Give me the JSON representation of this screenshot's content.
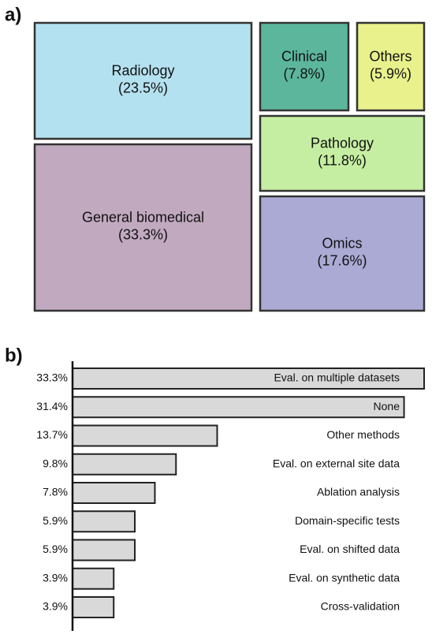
{
  "chart_data": [
    {
      "type": "treemap",
      "panel": "a)",
      "categories": [
        "Radiology",
        "General biomedical",
        "Clinical",
        "Others",
        "Pathology",
        "Omics"
      ],
      "values": [
        23.5,
        33.3,
        7.8,
        5.9,
        11.8,
        17.6
      ],
      "value_labels": [
        "(23.5%)",
        "(33.3%)",
        "(7.8%)",
        "(5.9%)",
        "(11.8%)",
        "(17.6%)"
      ],
      "colors": [
        "#b4e1ef",
        "#c1a9c0",
        "#5cb69c",
        "#e9f18c",
        "#c6eea2",
        "#abaad5"
      ]
    },
    {
      "type": "bar",
      "panel": "b)",
      "categories": [
        "Eval. on multiple datasets",
        "None",
        "Other methods",
        "Eval. on external site data",
        "Ablation analysis",
        "Domain-specific tests",
        "Eval. on shifted data",
        "Eval. on synthetic data",
        "Cross-validation"
      ],
      "values": [
        33.3,
        31.4,
        13.7,
        9.8,
        7.8,
        5.9,
        5.9,
        3.9,
        3.9
      ],
      "value_labels": [
        "33.3%",
        "31.4%",
        "13.7%",
        "9.8%",
        "7.8%",
        "5.9%",
        "5.9%",
        "3.9%",
        "3.9%"
      ],
      "color": "#d9d9d9",
      "xlim": [
        0,
        33.3
      ]
    }
  ]
}
